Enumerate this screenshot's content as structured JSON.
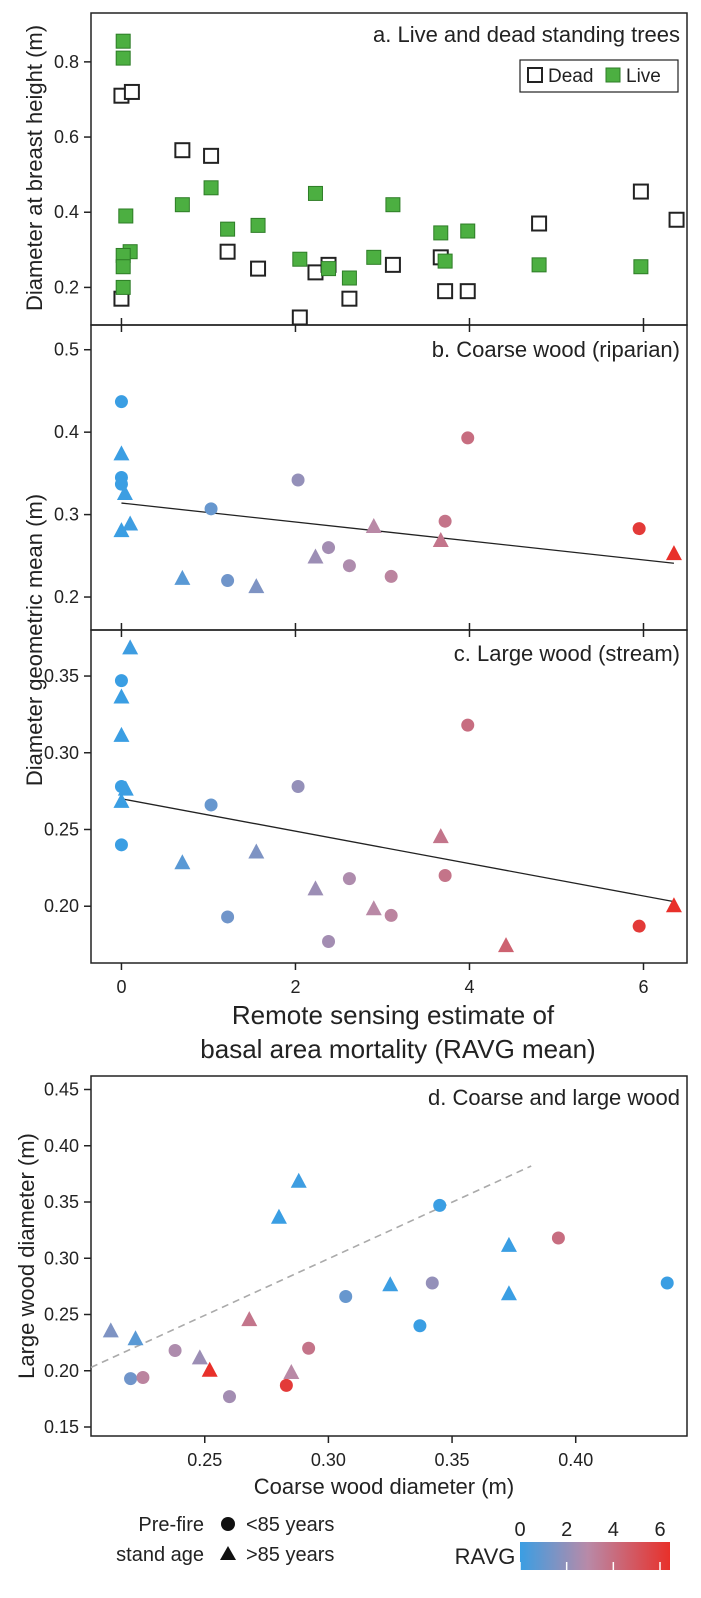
{
  "chart_data": [
    {
      "panel": "a",
      "type": "scatter",
      "title_letter": "a.",
      "title": "Live and dead standing trees",
      "xlabel": "",
      "ylabel": "Diameter at breast height (m)",
      "xlim": [
        -0.35,
        6.5
      ],
      "ylim": [
        0.1,
        0.93
      ],
      "x_ticks": [
        0,
        2,
        4,
        6
      ],
      "y_ticks": [
        0.2,
        0.4,
        0.6,
        0.8
      ],
      "y_tick_labels": [
        "0.2",
        "0.4",
        "0.6",
        "0.8"
      ],
      "legend": {
        "position": "top-right",
        "entries": [
          "Dead",
          "Live"
        ]
      },
      "series": [
        {
          "name": "Dead",
          "marker": "open-square",
          "color": "#222222",
          "x": [
            0,
            0.12,
            0,
            0.7,
            1.03,
            1.22,
            1.57,
            2.05,
            2.23,
            2.38,
            2.62,
            3.12,
            3.67,
            3.72,
            3.98,
            4.8,
            5.97,
            6.38
          ],
          "y": [
            0.71,
            0.72,
            0.17,
            0.565,
            0.55,
            0.295,
            0.25,
            0.12,
            0.24,
            0.26,
            0.17,
            0.26,
            0.28,
            0.19,
            0.19,
            0.37,
            0.455,
            0.38
          ]
        },
        {
          "name": "Live",
          "marker": "filled-square",
          "color": "#4caf41",
          "x": [
            0.02,
            0.02,
            0.05,
            0.1,
            0.02,
            0.02,
            0.02,
            0.7,
            1.03,
            1.22,
            1.57,
            2.05,
            2.23,
            2.38,
            2.62,
            2.9,
            3.12,
            3.67,
            3.72,
            3.98,
            4.8,
            5.97
          ],
          "y": [
            0.855,
            0.81,
            0.39,
            0.295,
            0.285,
            0.255,
            0.2,
            0.42,
            0.465,
            0.355,
            0.365,
            0.275,
            0.45,
            0.25,
            0.225,
            0.28,
            0.42,
            0.345,
            0.27,
            0.35,
            0.26,
            0.255
          ]
        }
      ]
    },
    {
      "panel": "b",
      "type": "scatter",
      "title_letter": "b.",
      "title": "Coarse wood (riparian)",
      "xlabel": "",
      "ylabel": "",
      "xlim": [
        -0.35,
        6.5
      ],
      "ylim": [
        0.16,
        0.53
      ],
      "x_ticks": [
        0,
        2,
        4,
        6
      ],
      "y_ticks": [
        0.2,
        0.3,
        0.4,
        0.5
      ],
      "y_tick_labels": [
        "0.2",
        "0.3",
        "0.4",
        "0.5"
      ],
      "trendline": {
        "x": [
          0,
          6.35
        ],
        "y": [
          0.314,
          0.241
        ]
      },
      "points": [
        {
          "x": 0,
          "y": 0.437,
          "shape": "circle"
        },
        {
          "x": 0,
          "y": 0.345,
          "shape": "circle"
        },
        {
          "x": 0,
          "y": 0.337,
          "shape": "circle"
        },
        {
          "x": 0,
          "y": 0.373,
          "shape": "triangle"
        },
        {
          "x": 0.04,
          "y": 0.325,
          "shape": "triangle"
        },
        {
          "x": 0,
          "y": 0.28,
          "shape": "triangle"
        },
        {
          "x": 0.1,
          "y": 0.288,
          "shape": "triangle"
        },
        {
          "x": 0.7,
          "y": 0.222,
          "shape": "triangle"
        },
        {
          "x": 1.03,
          "y": 0.307,
          "shape": "circle"
        },
        {
          "x": 1.22,
          "y": 0.22,
          "shape": "circle"
        },
        {
          "x": 1.55,
          "y": 0.212,
          "shape": "triangle"
        },
        {
          "x": 2.03,
          "y": 0.342,
          "shape": "circle"
        },
        {
          "x": 2.23,
          "y": 0.248,
          "shape": "triangle"
        },
        {
          "x": 2.38,
          "y": 0.26,
          "shape": "circle"
        },
        {
          "x": 2.62,
          "y": 0.238,
          "shape": "circle"
        },
        {
          "x": 2.9,
          "y": 0.285,
          "shape": "triangle"
        },
        {
          "x": 3.1,
          "y": 0.225,
          "shape": "circle"
        },
        {
          "x": 3.67,
          "y": 0.268,
          "shape": "triangle"
        },
        {
          "x": 3.72,
          "y": 0.292,
          "shape": "circle"
        },
        {
          "x": 3.98,
          "y": 0.393,
          "shape": "circle"
        },
        {
          "x": 5.95,
          "y": 0.283,
          "shape": "circle"
        },
        {
          "x": 6.35,
          "y": 0.252,
          "shape": "triangle"
        }
      ]
    },
    {
      "panel": "c",
      "type": "scatter",
      "title_letter": "c.",
      "title": "Large wood (stream)",
      "xlabel": "Remote sensing estimate of basal area mortality (RAVG mean)",
      "xlabel_lines": [
        "Remote sensing estimate of",
        "basal area mortality (RAVG mean)"
      ],
      "ylabel": "Diameter geometric mean (m)",
      "xlim": [
        -0.35,
        6.5
      ],
      "ylim": [
        0.163,
        0.38
      ],
      "x_ticks": [
        0,
        2,
        4,
        6
      ],
      "x_tick_labels": [
        "0",
        "2",
        "4",
        "6"
      ],
      "y_ticks": [
        0.2,
        0.25,
        0.3,
        0.35
      ],
      "y_tick_labels": [
        "0.20",
        "0.25",
        "0.30",
        "0.35"
      ],
      "trendline": {
        "x": [
          0,
          6.35
        ],
        "y": [
          0.27,
          0.203
        ]
      },
      "points": [
        {
          "x": 0,
          "y": 0.347,
          "shape": "circle"
        },
        {
          "x": 0,
          "y": 0.278,
          "shape": "circle"
        },
        {
          "x": 0,
          "y": 0.24,
          "shape": "circle"
        },
        {
          "x": 0.1,
          "y": 0.368,
          "shape": "triangle"
        },
        {
          "x": 0,
          "y": 0.336,
          "shape": "triangle"
        },
        {
          "x": 0,
          "y": 0.311,
          "shape": "triangle"
        },
        {
          "x": 0.05,
          "y": 0.276,
          "shape": "triangle"
        },
        {
          "x": 0,
          "y": 0.268,
          "shape": "triangle"
        },
        {
          "x": 0.7,
          "y": 0.228,
          "shape": "triangle"
        },
        {
          "x": 1.03,
          "y": 0.266,
          "shape": "circle"
        },
        {
          "x": 1.22,
          "y": 0.193,
          "shape": "circle"
        },
        {
          "x": 1.55,
          "y": 0.235,
          "shape": "triangle"
        },
        {
          "x": 2.03,
          "y": 0.278,
          "shape": "circle"
        },
        {
          "x": 2.23,
          "y": 0.211,
          "shape": "triangle"
        },
        {
          "x": 2.38,
          "y": 0.177,
          "shape": "circle"
        },
        {
          "x": 2.62,
          "y": 0.218,
          "shape": "circle"
        },
        {
          "x": 2.9,
          "y": 0.198,
          "shape": "triangle"
        },
        {
          "x": 3.1,
          "y": 0.194,
          "shape": "circle"
        },
        {
          "x": 3.67,
          "y": 0.245,
          "shape": "triangle"
        },
        {
          "x": 3.72,
          "y": 0.22,
          "shape": "circle"
        },
        {
          "x": 3.98,
          "y": 0.318,
          "shape": "circle"
        },
        {
          "x": 4.42,
          "y": 0.174,
          "shape": "triangle"
        },
        {
          "x": 5.95,
          "y": 0.187,
          "shape": "circle"
        },
        {
          "x": 6.35,
          "y": 0.2,
          "shape": "triangle"
        }
      ]
    },
    {
      "panel": "d",
      "type": "scatter",
      "title_letter": "d.",
      "title": "Coarse and large wood",
      "xlabel": "Coarse wood diameter (m)",
      "ylabel": "Large  wood diameter (m)",
      "xlim": [
        0.204,
        0.445
      ],
      "ylim": [
        0.142,
        0.462
      ],
      "x_ticks": [
        0.25,
        0.3,
        0.35,
        0.4
      ],
      "x_tick_labels": [
        "0.25",
        "0.30",
        "0.35",
        "0.40"
      ],
      "y_ticks": [
        0.15,
        0.2,
        0.25,
        0.3,
        0.35,
        0.4,
        0.45
      ],
      "y_tick_labels": [
        "0.15",
        "0.20",
        "0.25",
        "0.30",
        "0.35",
        "0.40",
        "0.45"
      ],
      "reference_line": {
        "x": [
          0.204,
          0.382
        ],
        "y": [
          0.203,
          0.382
        ],
        "style": "dashed",
        "color": "#aaaaaa"
      },
      "points": [
        {
          "x": 0.212,
          "y": 0.235,
          "shape": "triangle",
          "ravg": 1.55
        },
        {
          "x": 0.222,
          "y": 0.228,
          "shape": "triangle",
          "ravg": 0.7
        },
        {
          "x": 0.22,
          "y": 0.193,
          "shape": "circle",
          "ravg": 1.22
        },
        {
          "x": 0.225,
          "y": 0.194,
          "shape": "circle",
          "ravg": 3.1
        },
        {
          "x": 0.238,
          "y": 0.218,
          "shape": "circle",
          "ravg": 2.62
        },
        {
          "x": 0.248,
          "y": 0.211,
          "shape": "triangle",
          "ravg": 2.23
        },
        {
          "x": 0.252,
          "y": 0.2,
          "shape": "triangle",
          "ravg": 6.35
        },
        {
          "x": 0.26,
          "y": 0.177,
          "shape": "circle",
          "ravg": 2.38
        },
        {
          "x": 0.268,
          "y": 0.245,
          "shape": "triangle",
          "ravg": 3.67
        },
        {
          "x": 0.28,
          "y": 0.336,
          "shape": "triangle",
          "ravg": 0
        },
        {
          "x": 0.283,
          "y": 0.187,
          "shape": "circle",
          "ravg": 5.95
        },
        {
          "x": 0.285,
          "y": 0.198,
          "shape": "triangle",
          "ravg": 2.9
        },
        {
          "x": 0.288,
          "y": 0.368,
          "shape": "triangle",
          "ravg": 0.1
        },
        {
          "x": 0.292,
          "y": 0.22,
          "shape": "circle",
          "ravg": 3.72
        },
        {
          "x": 0.307,
          "y": 0.266,
          "shape": "circle",
          "ravg": 1.03
        },
        {
          "x": 0.325,
          "y": 0.276,
          "shape": "triangle",
          "ravg": 0.05
        },
        {
          "x": 0.337,
          "y": 0.24,
          "shape": "circle",
          "ravg": 0
        },
        {
          "x": 0.342,
          "y": 0.278,
          "shape": "circle",
          "ravg": 2.03
        },
        {
          "x": 0.345,
          "y": 0.347,
          "shape": "circle",
          "ravg": 0
        },
        {
          "x": 0.373,
          "y": 0.311,
          "shape": "triangle",
          "ravg": 0
        },
        {
          "x": 0.373,
          "y": 0.268,
          "shape": "triangle",
          "ravg": 0
        },
        {
          "x": 0.393,
          "y": 0.318,
          "shape": "circle",
          "ravg": 3.98
        },
        {
          "x": 0.437,
          "y": 0.278,
          "shape": "circle",
          "ravg": 0
        }
      ]
    }
  ],
  "colors": {
    "ravg_low": "#3a9ee3",
    "ravg_mid": "#b88aa8",
    "ravg_high": "#e8302a",
    "live_fill": "#4caf41",
    "axis": "#222222",
    "trendline": "#222222",
    "reference_line": "#aaaaaa"
  },
  "legend": {
    "stand_age_title_lines": [
      "Pre-fire",
      "stand age"
    ],
    "circle_label": "<85 years",
    "triangle_label": ">85 years",
    "ravg_label": "RAVG",
    "ravg_range": [
      0,
      6
    ],
    "ravg_ticks": [
      0,
      2,
      4,
      6
    ],
    "ravg_tick_labels": [
      "0",
      "2",
      "4",
      "6"
    ]
  }
}
